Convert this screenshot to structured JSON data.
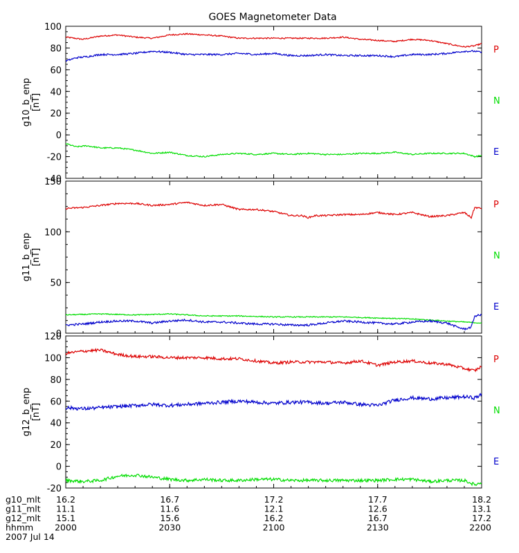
{
  "title": "GOES Magnetometer Data",
  "colors": {
    "P": "#dd0000",
    "N": "#00dd00",
    "E": "#0000cc",
    "frame": "#000000"
  },
  "chart_data": [
    {
      "type": "line",
      "ylabel": "g10_b_enp",
      "yunit": "[nT]",
      "ylim": [
        -40,
        100
      ],
      "yticks": [
        -40,
        -20,
        0,
        20,
        40,
        60,
        80,
        100
      ],
      "xlim": [
        0,
        120
      ],
      "series": [
        {
          "name": "P",
          "color": "#dd0000",
          "noise": 0.6,
          "x": [
            0,
            5,
            10,
            15,
            20,
            25,
            30,
            35,
            40,
            45,
            50,
            55,
            60,
            65,
            70,
            75,
            80,
            85,
            90,
            95,
            100,
            105,
            110,
            115,
            118,
            120
          ],
          "y": [
            90,
            88,
            91,
            92,
            90,
            89,
            92,
            93,
            92,
            91,
            89,
            89,
            89,
            89,
            89,
            89,
            90,
            88,
            87,
            86,
            88,
            87,
            84,
            81,
            82,
            84
          ]
        },
        {
          "name": "N",
          "color": "#00dd00",
          "noise": 0.6,
          "x": [
            0,
            3,
            6,
            10,
            15,
            20,
            25,
            30,
            35,
            40,
            45,
            50,
            55,
            60,
            65,
            70,
            75,
            80,
            85,
            90,
            95,
            100,
            105,
            110,
            115,
            118,
            120
          ],
          "y": [
            -8,
            -11,
            -10,
            -12,
            -12,
            -14,
            -17,
            -16,
            -19,
            -20,
            -18,
            -17,
            -18,
            -17,
            -18,
            -17,
            -18,
            -18,
            -17,
            -17,
            -16,
            -18,
            -17,
            -17,
            -17,
            -20,
            -19
          ]
        },
        {
          "name": "E",
          "color": "#0000cc",
          "noise": 0.8,
          "x": [
            0,
            3,
            6,
            10,
            15,
            20,
            25,
            30,
            35,
            40,
            45,
            50,
            55,
            60,
            65,
            70,
            75,
            80,
            85,
            90,
            95,
            100,
            105,
            110,
            115,
            118,
            120
          ],
          "y": [
            68,
            71,
            72,
            74,
            74,
            75,
            77,
            76,
            74,
            74,
            74,
            75,
            74,
            75,
            73,
            73,
            74,
            73,
            73,
            73,
            72,
            74,
            74,
            75,
            77,
            77,
            76
          ]
        }
      ]
    },
    {
      "type": "line",
      "ylabel": "g11_b_enp",
      "yunit": "[nT]",
      "ylim": [
        0,
        150
      ],
      "yticks": [
        0,
        50,
        100,
        150
      ],
      "xlim": [
        0,
        120
      ],
      "series": [
        {
          "name": "P",
          "color": "#dd0000",
          "noise": 0.8,
          "x": [
            0,
            5,
            10,
            15,
            20,
            25,
            30,
            35,
            40,
            45,
            50,
            55,
            60,
            65,
            68,
            70,
            72,
            75,
            80,
            85,
            90,
            95,
            100,
            105,
            110,
            115,
            117,
            118,
            120
          ],
          "y": [
            123,
            124,
            126,
            128,
            128,
            126,
            127,
            129,
            126,
            127,
            122,
            122,
            120,
            116,
            116,
            114,
            116,
            116,
            117,
            117,
            119,
            117,
            119,
            115,
            116,
            119,
            114,
            124,
            123
          ]
        },
        {
          "name": "N",
          "color": "#00dd00",
          "noise": 0.5,
          "x": [
            0,
            10,
            20,
            30,
            40,
            50,
            60,
            70,
            80,
            90,
            100,
            110,
            115,
            120
          ],
          "y": [
            18,
            19,
            18,
            19,
            17,
            17,
            16,
            16,
            16,
            15,
            14,
            12,
            11,
            10
          ]
        },
        {
          "name": "E",
          "color": "#0000cc",
          "noise": 1.0,
          "x": [
            0,
            5,
            10,
            15,
            20,
            25,
            30,
            35,
            40,
            45,
            50,
            55,
            60,
            65,
            70,
            75,
            80,
            85,
            90,
            95,
            100,
            105,
            110,
            113,
            115,
            117,
            118,
            120
          ],
          "y": [
            8,
            9,
            11,
            12,
            12,
            10,
            12,
            13,
            11,
            11,
            10,
            9,
            9,
            8,
            8,
            10,
            12,
            11,
            10,
            9,
            11,
            12,
            10,
            6,
            4,
            6,
            17,
            18
          ]
        }
      ]
    },
    {
      "type": "line",
      "ylabel": "g12_b_enp",
      "yunit": "[nT]",
      "ylim": [
        -20,
        120
      ],
      "yticks": [
        -20,
        0,
        20,
        40,
        60,
        80,
        100,
        120
      ],
      "xlim": [
        0,
        120
      ],
      "series": [
        {
          "name": "P",
          "color": "#dd0000",
          "noise": 1.3,
          "x": [
            0,
            5,
            10,
            15,
            20,
            25,
            30,
            35,
            40,
            45,
            50,
            55,
            60,
            65,
            70,
            75,
            80,
            85,
            90,
            95,
            100,
            105,
            110,
            115,
            118,
            120
          ],
          "y": [
            104,
            106,
            107,
            103,
            101,
            101,
            100,
            100,
            100,
            99,
            99,
            97,
            95,
            96,
            96,
            96,
            95,
            97,
            93,
            96,
            97,
            95,
            94,
            90,
            88,
            92
          ]
        },
        {
          "name": "N",
          "color": "#00dd00",
          "noise": 1.4,
          "x": [
            0,
            5,
            10,
            15,
            20,
            25,
            30,
            35,
            40,
            45,
            50,
            55,
            60,
            65,
            70,
            75,
            80,
            85,
            90,
            95,
            100,
            105,
            110,
            115,
            118,
            120
          ],
          "y": [
            -13,
            -14,
            -13,
            -9,
            -8,
            -10,
            -12,
            -13,
            -12,
            -13,
            -13,
            -12,
            -12,
            -13,
            -13,
            -13,
            -13,
            -13,
            -13,
            -12,
            -12,
            -14,
            -13,
            -13,
            -17,
            -15
          ]
        },
        {
          "name": "E",
          "color": "#0000cc",
          "noise": 1.6,
          "x": [
            0,
            5,
            10,
            15,
            20,
            25,
            30,
            35,
            40,
            45,
            50,
            55,
            60,
            65,
            70,
            75,
            80,
            85,
            90,
            95,
            100,
            105,
            110,
            115,
            118,
            120
          ],
          "y": [
            54,
            53,
            54,
            55,
            56,
            57,
            56,
            57,
            58,
            59,
            60,
            59,
            58,
            59,
            59,
            58,
            59,
            57,
            56,
            61,
            63,
            62,
            63,
            64,
            63,
            66
          ]
        }
      ]
    }
  ],
  "xaxis": {
    "tick_positions": [
      0,
      30,
      60,
      90,
      120
    ],
    "rows": [
      {
        "label": "g10_mlt",
        "values": [
          "16.2",
          "16.7",
          "17.2",
          "17.7",
          "18.2"
        ]
      },
      {
        "label": "g11_mlt",
        "values": [
          "11.1",
          "11.6",
          "12.1",
          "12.6",
          "13.1"
        ]
      },
      {
        "label": "g12_mlt",
        "values": [
          "15.1",
          "15.6",
          "16.2",
          "16.7",
          "17.2"
        ]
      },
      {
        "label": "hhmm",
        "values": [
          "2000",
          "2030",
          "2100",
          "2130",
          "2200"
        ]
      }
    ],
    "date": "2007 Jul 14"
  }
}
